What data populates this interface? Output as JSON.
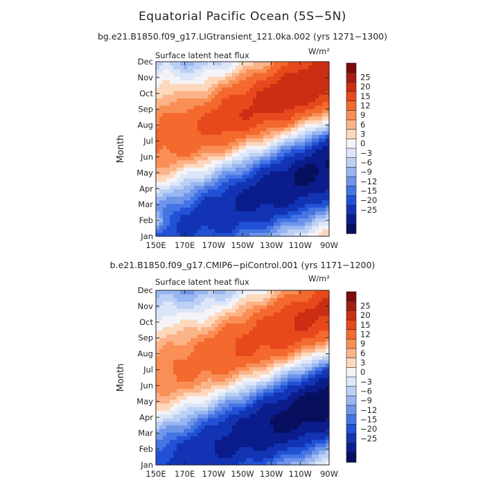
{
  "title": "Equatorial Pacific Ocean (5S−5N)",
  "chart_data": [
    {
      "type": "heatmap",
      "subtitle": "bg.e21.B1850.f09_g17.LIGtransient_121.0ka.002 (yrs 1271−1300)",
      "left_label": "Surface latent heat flux",
      "units_label": "W/m²",
      "ylabel": "Month",
      "xlabel": "",
      "x_tick_labels": [
        "150E",
        "170E",
        "170W",
        "150W",
        "130W",
        "110W",
        "90W"
      ],
      "y_tick_labels": [
        "Jan",
        "Feb",
        "Mar",
        "Apr",
        "May",
        "Jun",
        "Jul",
        "Aug",
        "Sep",
        "Oct",
        "Nov",
        "Dec"
      ],
      "x_range_deg_east": [
        150,
        270
      ],
      "y_range_months": [
        1,
        12
      ],
      "contour_levels": [
        -25,
        -20,
        -15,
        -12,
        -9,
        -6,
        -3,
        0,
        3,
        6,
        9,
        12,
        15,
        20,
        25
      ],
      "pattern": {
        "ridge_anchor_lon": 170,
        "ridge_anchor_month": 4.6,
        "ridge_slope_month_per_deg": 0.0368,
        "warm_amplitude": 30,
        "cold_amplitude": 26,
        "spread_months": 2.3,
        "core_offset_months": 2.6,
        "east_boost": 1.2,
        "west_warm": 7,
        "feb_west_anomaly": 9
      }
    },
    {
      "type": "heatmap",
      "subtitle": "b.e21.B1850.f09_g17.CMIP6−piControl.001 (yrs 1171−1200)",
      "left_label": "Surface latent heat flux",
      "units_label": "W/m²",
      "ylabel": "Month",
      "xlabel": "",
      "x_tick_labels": [
        "150E",
        "170E",
        "170W",
        "150W",
        "130W",
        "110W",
        "90W"
      ],
      "y_tick_labels": [
        "Jan",
        "Feb",
        "Mar",
        "Apr",
        "May",
        "Jun",
        "Jul",
        "Aug",
        "Sep",
        "Oct",
        "Nov",
        "Dec"
      ],
      "x_range_deg_east": [
        150,
        270
      ],
      "y_range_months": [
        1,
        12
      ],
      "contour_levels": [
        -25,
        -20,
        -15,
        -12,
        -9,
        -6,
        -3,
        0,
        3,
        6,
        9,
        12,
        15,
        20,
        25
      ],
      "pattern": {
        "ridge_anchor_lon": 170,
        "ridge_anchor_month": 4.3,
        "ridge_slope_month_per_deg": 0.036,
        "warm_amplitude": 28,
        "cold_amplitude": 30,
        "spread_months": 2.4,
        "core_offset_months": 2.5,
        "east_boost": 1.1,
        "west_warm": 5,
        "feb_west_anomaly": 0
      }
    }
  ],
  "colorbar": {
    "labels": [
      "25",
      "20",
      "15",
      "12",
      "9",
      "6",
      "3",
      "0",
      "−3",
      "−6",
      "−9",
      "−12",
      "−15",
      "−20",
      "−25"
    ],
    "colors": [
      "#7a0c0c",
      "#a51d0f",
      "#cc2e13",
      "#e8491c",
      "#f4692d",
      "#f98f56",
      "#fbb388",
      "#fdd8bd",
      "#f4f3f8",
      "#dce6f8",
      "#bcd0f5",
      "#98b6f1",
      "#6f95ea",
      "#4574e3",
      "#2152d6",
      "#1234b4",
      "#0b1c8c",
      "#070f5e"
    ]
  }
}
